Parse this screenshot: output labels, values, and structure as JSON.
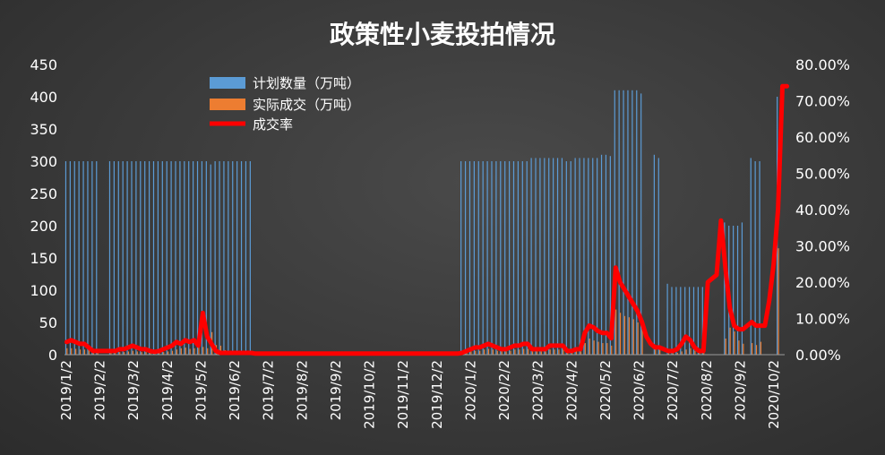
{
  "chart_data": {
    "type": "bar+line",
    "title": "政策性小麦投拍情况",
    "legend_placement": "top-left",
    "grid": false,
    "colors": {
      "plan": "#5b9bd5",
      "actual": "#ed7d31",
      "rate": "#ff0000"
    },
    "y_left": {
      "min": 0,
      "max": 450,
      "ticks": [
        "0",
        "50",
        "100",
        "150",
        "200",
        "250",
        "300",
        "350",
        "400",
        "450"
      ]
    },
    "y_right": {
      "min": 0,
      "max": 80,
      "ticks": [
        "0.00%",
        "10.00%",
        "20.00%",
        "30.00%",
        "40.00%",
        "50.00%",
        "60.00%",
        "70.00%",
        "80.00%"
      ]
    },
    "x_labels": [
      "2019/1/2",
      "2019/2/2",
      "2019/3/2",
      "2019/4/2",
      "2019/5/2",
      "2019/6/2",
      "2019/7/2",
      "2019/8/2",
      "2019/9/2",
      "2019/10/2",
      "2019/11/2",
      "2019/12/2",
      "2020/1/2",
      "2020/2/2",
      "2020/3/2",
      "2020/4/2",
      "2020/5/2",
      "2020/6/2",
      "2020/7/2",
      "2020/8/2",
      "2020/9/2",
      "2020/10/2"
    ],
    "series": [
      {
        "name": "计划数量（万吨）",
        "kind": "bar",
        "values": [
          300,
          300,
          300,
          300,
          300,
          300,
          300,
          300,
          0,
          0,
          300,
          300,
          300,
          300,
          300,
          300,
          300,
          300,
          300,
          300,
          300,
          300,
          300,
          300,
          300,
          300,
          300,
          300,
          300,
          300,
          300,
          300,
          300,
          295,
          300,
          300,
          300,
          300,
          300,
          300,
          300,
          300,
          300,
          0,
          0,
          0,
          0,
          0,
          0,
          0,
          0,
          0,
          0,
          0,
          0,
          0,
          0,
          0,
          0,
          0,
          0,
          0,
          0,
          0,
          0,
          0,
          0,
          0,
          0,
          0,
          0,
          0,
          0,
          0,
          0,
          0,
          0,
          0,
          0,
          0,
          0,
          0,
          0,
          0,
          0,
          0,
          0,
          0,
          0,
          0,
          300,
          300,
          300,
          300,
          300,
          300,
          300,
          300,
          300,
          300,
          300,
          300,
          300,
          300,
          300,
          300,
          305,
          305,
          305,
          305,
          305,
          305,
          305,
          305,
          300,
          300,
          305,
          305,
          305,
          305,
          305,
          305,
          310,
          310,
          308,
          410,
          410,
          410,
          410,
          410,
          410,
          405,
          0,
          0,
          310,
          305,
          0,
          110,
          105,
          105,
          105,
          105,
          105,
          105,
          105,
          105,
          0,
          0,
          0,
          0,
          205,
          200,
          200,
          200,
          205,
          0,
          305,
          300,
          300,
          0,
          0,
          0,
          400,
          0
        ]
      },
      {
        "name": "实际成交（万吨）",
        "kind": "bar",
        "values": [
          10,
          10,
          9,
          8,
          8,
          7,
          3,
          3,
          0,
          0,
          3,
          3,
          4,
          4,
          5,
          6,
          5,
          4,
          4,
          3,
          2,
          3,
          4,
          5,
          6,
          8,
          10,
          11,
          9,
          10,
          14,
          12,
          10,
          35,
          15,
          14,
          7,
          4,
          3,
          2,
          2,
          2,
          2,
          0,
          0,
          0,
          0,
          0,
          0,
          0,
          0,
          0,
          0,
          0,
          0,
          0,
          0,
          0,
          0,
          0,
          0,
          0,
          0,
          0,
          0,
          0,
          0,
          0,
          0,
          0,
          0,
          0,
          0,
          0,
          0,
          0,
          0,
          0,
          0,
          0,
          0,
          0,
          0,
          0,
          0,
          0,
          0,
          0,
          0,
          0,
          3,
          4,
          5,
          6,
          6,
          8,
          9,
          8,
          6,
          5,
          5,
          6,
          8,
          8,
          9,
          9,
          5,
          5,
          5,
          5,
          8,
          8,
          8,
          8,
          4,
          4,
          5,
          5,
          18,
          25,
          22,
          20,
          18,
          18,
          14,
          70,
          65,
          60,
          58,
          55,
          50,
          40,
          0,
          0,
          15,
          12,
          0,
          2,
          2,
          3,
          5,
          8,
          10,
          6,
          5,
          5,
          0,
          0,
          0,
          0,
          25,
          42,
          36,
          22,
          17,
          0,
          18,
          15,
          20,
          0,
          0,
          0,
          165,
          0
        ]
      },
      {
        "name": "成交率",
        "kind": "line",
        "values": [
          3.5,
          4,
          3.5,
          3,
          3,
          2,
          1,
          1,
          1,
          1,
          1,
          1,
          1.5,
          1.5,
          2,
          2.5,
          2,
          1.5,
          1.5,
          1,
          0.8,
          1,
          1.5,
          2,
          2.5,
          3.5,
          3,
          4,
          3.5,
          4,
          2.5,
          11.5,
          5,
          3,
          1,
          0.5,
          0.5,
          0.5,
          0.5,
          0.5,
          0.5,
          0.5,
          0.5,
          0.3,
          0.3,
          0.3,
          0.3,
          0.3,
          0.3,
          0.3,
          0.3,
          0.3,
          0.3,
          0.3,
          0.3,
          0.3,
          0.3,
          0.3,
          0.3,
          0.3,
          0.3,
          0.3,
          0.3,
          0.3,
          0.3,
          0.3,
          0.3,
          0.3,
          0.3,
          0.3,
          0.3,
          0.3,
          0.3,
          0.3,
          0.3,
          0.3,
          0.3,
          0.3,
          0.3,
          0.3,
          0.3,
          0.3,
          0.3,
          0.3,
          0.3,
          0.3,
          0.3,
          0.3,
          0.3,
          0.3,
          0.5,
          1,
          1.5,
          2,
          2,
          2.5,
          3,
          2.5,
          2,
          1.5,
          1.5,
          2,
          2.5,
          2.5,
          3,
          3,
          1.5,
          1.5,
          1.5,
          1.5,
          2.5,
          2.5,
          2.5,
          2.5,
          1,
          1,
          1.5,
          1.5,
          6,
          8,
          7.5,
          6.5,
          6,
          6,
          4.5,
          24,
          20,
          18,
          16,
          14,
          12,
          9,
          5,
          3,
          2,
          2,
          1.5,
          1,
          1,
          1.5,
          3,
          5,
          4,
          2,
          1,
          1,
          20,
          21,
          22,
          37,
          24,
          13,
          8,
          7,
          7,
          8,
          9,
          8,
          8,
          8,
          15,
          25,
          40,
          74,
          74
        ]
      }
    ]
  }
}
